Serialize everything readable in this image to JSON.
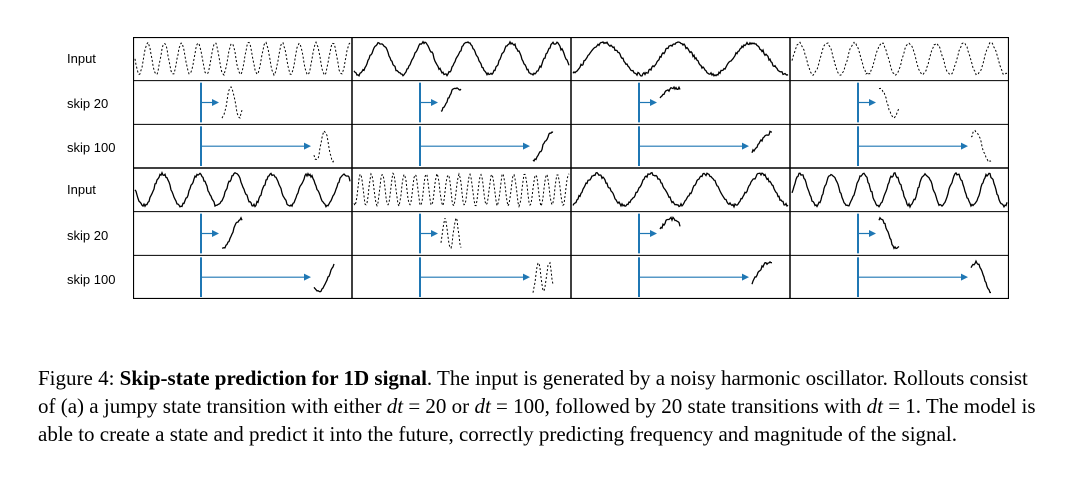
{
  "row_labels": [
    "Input",
    "skip 20",
    "skip 100",
    "Input",
    "skip 20",
    "skip 100"
  ],
  "panels": {
    "blocks": [
      {
        "kind": "input-block",
        "frequencies": [
          13,
          5,
          3,
          8
        ]
      },
      {
        "kind": "input-block",
        "frequencies": [
          6,
          20,
          4,
          7
        ]
      }
    ],
    "columns": 4,
    "skip_values": [
      20,
      100
    ],
    "colors": {
      "frame": "#000000",
      "arrow": "#1f77b4",
      "signal": "#000000"
    }
  },
  "caption": {
    "figure_label": "Figure 4:",
    "title": "Skip-state prediction for 1D signal",
    "text_1": ". The input is generated by a noisy harmonic oscillator. Rollouts consist of (a) a jumpy state transition with either ",
    "math_dt": "dt",
    "eq_20": " = 20 or ",
    "eq_100": " = 100, followed by 20 state transitions with ",
    "eq_1": " = 1. The model is able to create a state and predict it into the future, correctly predicting frequency and magnitude of the signal."
  }
}
